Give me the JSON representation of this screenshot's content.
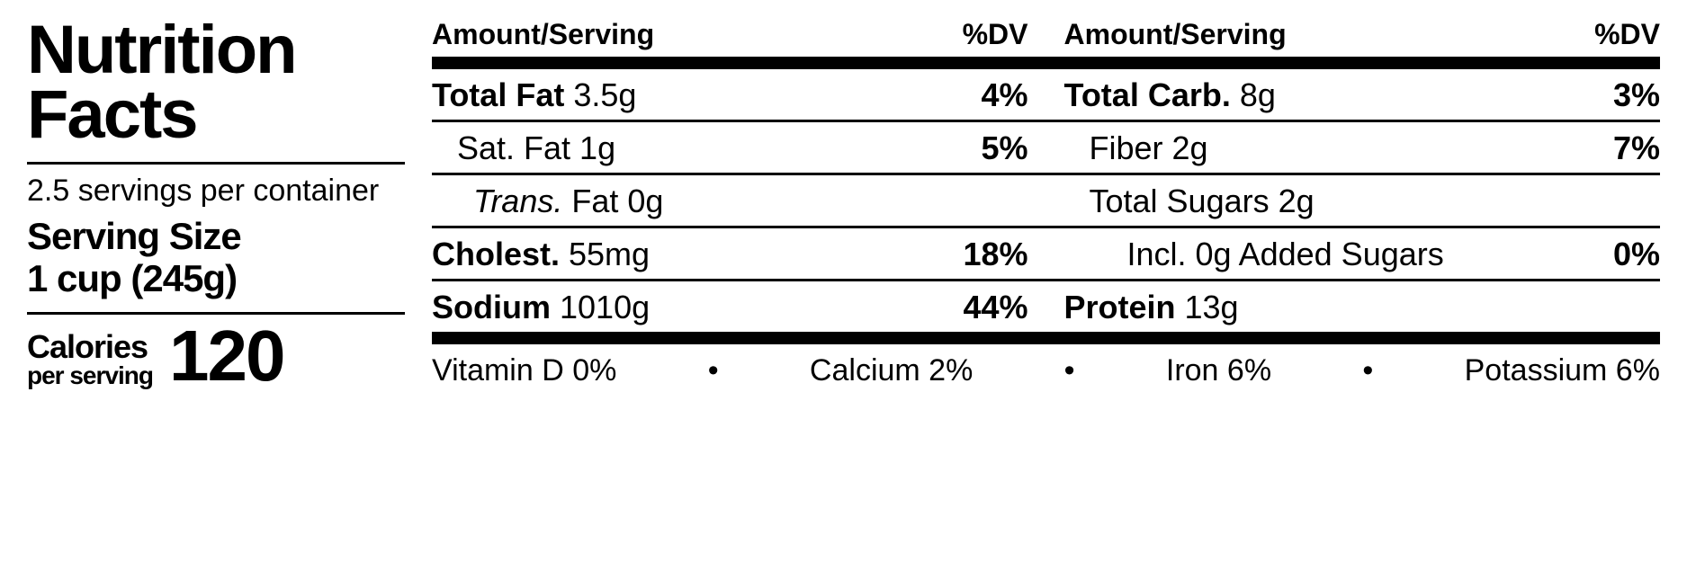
{
  "title_line1": "Nutrition",
  "title_line2": "Facts",
  "servings_per_container": "2.5 servings per container",
  "serving_size_label": "Serving Size",
  "serving_size_value": "1 cup (245g)",
  "calories_label": "Calories",
  "calories_sublabel": "per serving",
  "calories_value": "120",
  "header_amount": "Amount/Serving",
  "header_dv": "%DV",
  "left_rows": [
    {
      "label_bold": "Total Fat",
      "value": "3.5g",
      "dv": "4%",
      "indent": 0,
      "border": true
    },
    {
      "label_plain": "Sat. Fat 1g",
      "dv": "5%",
      "indent": 1,
      "border": true
    },
    {
      "label_italic": "Trans.",
      "label_after": " Fat 0g",
      "dv": "",
      "indent": 2,
      "border": true
    },
    {
      "label_bold": "Cholest.",
      "value": "55mg",
      "dv": "18%",
      "indent": 0,
      "border": true
    },
    {
      "label_bold": "Sodium",
      "value": "1010g",
      "dv": "44%",
      "indent": 0,
      "border": false
    }
  ],
  "right_rows": [
    {
      "label_bold": "Total Carb.",
      "value": "8g",
      "dv": "3%",
      "indent": 0,
      "border": true
    },
    {
      "label_plain": "Fiber 2g",
      "dv": "7%",
      "indent": 1,
      "border": true
    },
    {
      "label_plain": "Total Sugars 2g",
      "dv": "",
      "indent": 1,
      "border": true
    },
    {
      "label_plain": "Incl. 0g Added Sugars",
      "dv": "0%",
      "indent": 3,
      "border": true
    },
    {
      "label_bold": "Protein",
      "value": "13g",
      "dv": "",
      "indent": 0,
      "border": false
    }
  ],
  "vitamins": [
    {
      "name": "Vitamin D",
      "pct": "0%"
    },
    {
      "name": "Calcium",
      "pct": "2%"
    },
    {
      "name": "Iron",
      "pct": "6%"
    },
    {
      "name": "Potassium",
      "pct": "6%"
    }
  ]
}
